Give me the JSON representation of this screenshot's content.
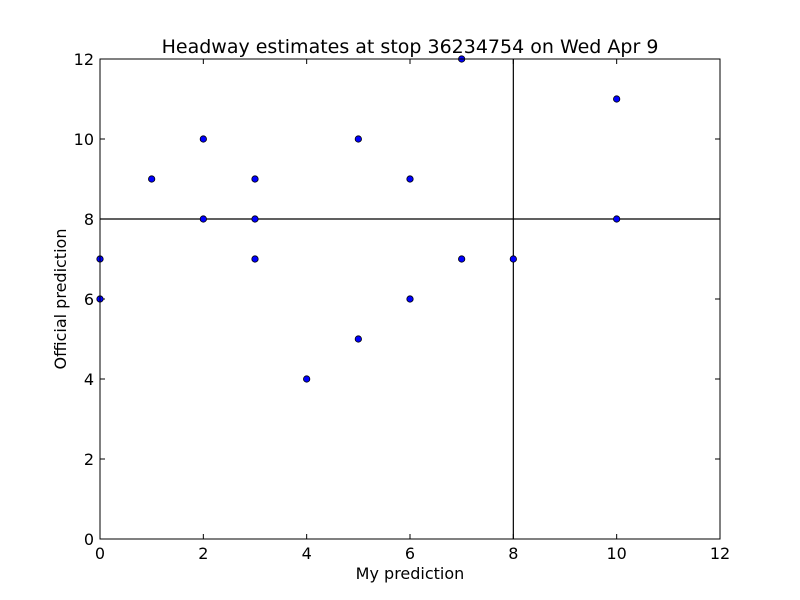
{
  "chart_data": {
    "type": "scatter",
    "title": "Headway estimates at stop 36234754 on Wed Apr 9",
    "xlabel": "My prediction",
    "ylabel": "Official prediction",
    "xlim": [
      0,
      12
    ],
    "ylim": [
      0,
      12
    ],
    "xticks": [
      0,
      2,
      4,
      6,
      8,
      10,
      12
    ],
    "yticks": [
      0,
      2,
      4,
      6,
      8,
      10,
      12
    ],
    "grid": false,
    "reference_lines": {
      "vertical_x": 8,
      "horizontal_y": 8
    },
    "points": [
      {
        "x": 0,
        "y": 7
      },
      {
        "x": 0,
        "y": 6
      },
      {
        "x": 1,
        "y": 9
      },
      {
        "x": 2,
        "y": 10
      },
      {
        "x": 2,
        "y": 8
      },
      {
        "x": 3,
        "y": 9
      },
      {
        "x": 3,
        "y": 8
      },
      {
        "x": 3,
        "y": 7
      },
      {
        "x": 4,
        "y": 4
      },
      {
        "x": 5,
        "y": 10
      },
      {
        "x": 5,
        "y": 5
      },
      {
        "x": 6,
        "y": 9
      },
      {
        "x": 6,
        "y": 6
      },
      {
        "x": 7,
        "y": 12
      },
      {
        "x": 7,
        "y": 7
      },
      {
        "x": 8,
        "y": 7
      },
      {
        "x": 10,
        "y": 11
      },
      {
        "x": 10,
        "y": 8
      }
    ],
    "marker_color": "#0000ff",
    "marker_edge_color": "#000000",
    "line_color": "#000000"
  }
}
